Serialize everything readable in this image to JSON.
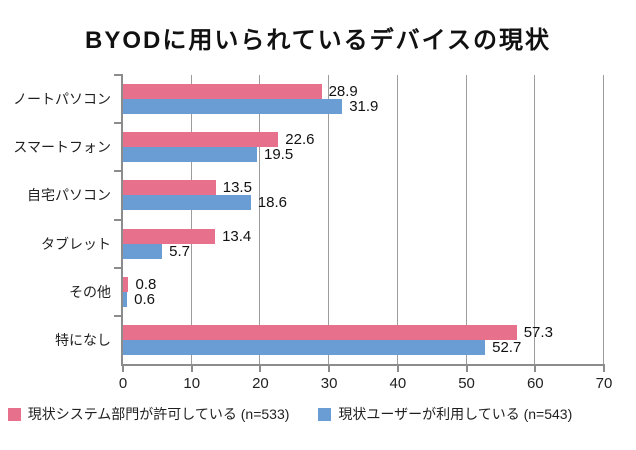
{
  "chart_data": {
    "type": "bar",
    "orientation": "horizontal",
    "title": "BYODに用いられているデバイスの現状",
    "categories": [
      "ノートパソコン",
      "スマートフォン",
      "自宅パソコン",
      "タブレット",
      "その他",
      "特になし"
    ],
    "series": [
      {
        "name": "現状システム部門が許可している (n=533)",
        "color": "#E7708D",
        "values": [
          28.9,
          22.6,
          13.5,
          13.4,
          0.8,
          57.3
        ]
      },
      {
        "name": "現状ユーザーが利用している (n=543)",
        "color": "#6A9DD4",
        "values": [
          31.9,
          19.5,
          18.6,
          5.7,
          0.6,
          52.7
        ]
      }
    ],
    "xlabel": "",
    "ylabel": "",
    "xlim": [
      0,
      70
    ],
    "xticks": [
      0,
      10,
      20,
      30,
      40,
      50,
      60,
      70
    ],
    "grid": true,
    "legend_position": "bottom",
    "value_labels": true
  },
  "colors": {
    "axis": "#8c8c8c",
    "grid": "#9c9c9c",
    "text": "#1f1f1f",
    "background": "#ffffff"
  }
}
